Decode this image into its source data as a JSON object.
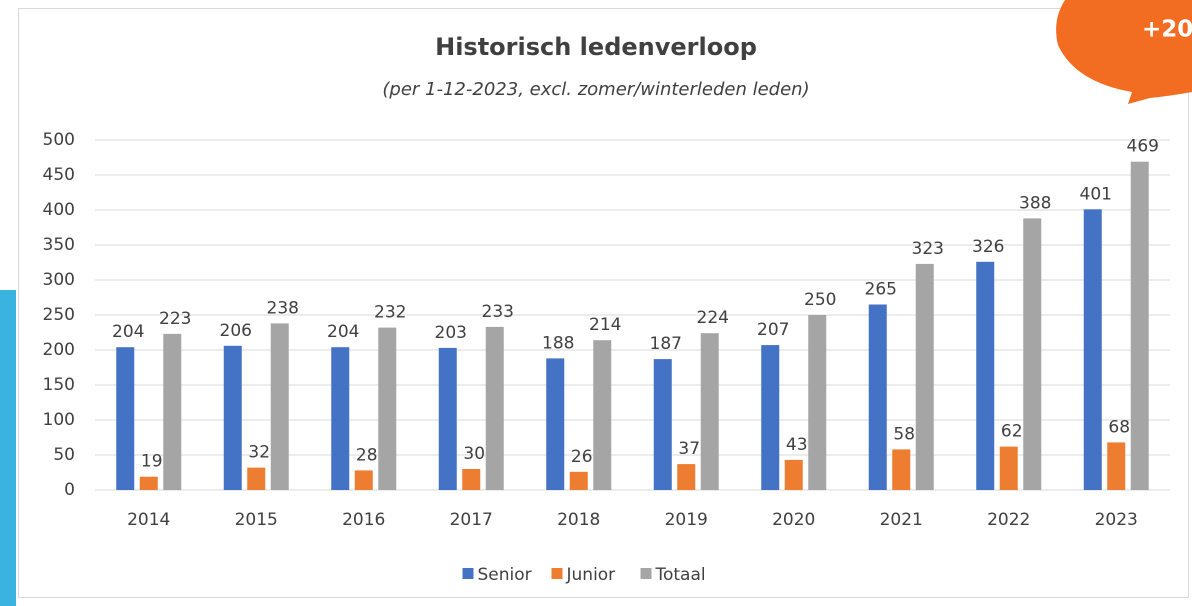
{
  "chart_data": {
    "type": "bar",
    "title": "Historisch ledenverloop",
    "subtitle": "(per 1-12-2023, excl. zomer/winterleden leden)",
    "annotation": "+20",
    "categories": [
      "2014",
      "2015",
      "2016",
      "2017",
      "2018",
      "2019",
      "2020",
      "2021",
      "2022",
      "2023"
    ],
    "series": [
      {
        "name": "Senior",
        "color": "#4472c4",
        "values": [
          204,
          206,
          204,
          203,
          188,
          187,
          207,
          265,
          326,
          401
        ]
      },
      {
        "name": "Junior",
        "color": "#ed7d31",
        "values": [
          19,
          32,
          28,
          30,
          26,
          37,
          43,
          58,
          62,
          68
        ]
      },
      {
        "name": "Totaal",
        "color": "#a5a5a5",
        "values": [
          223,
          238,
          232,
          233,
          214,
          224,
          250,
          323,
          388,
          469
        ]
      }
    ],
    "ylim": [
      0,
      500
    ],
    "yticks": [
      0,
      50,
      100,
      150,
      200,
      250,
      300,
      350,
      400,
      450,
      500
    ],
    "grid": true,
    "legend": "bottom"
  }
}
